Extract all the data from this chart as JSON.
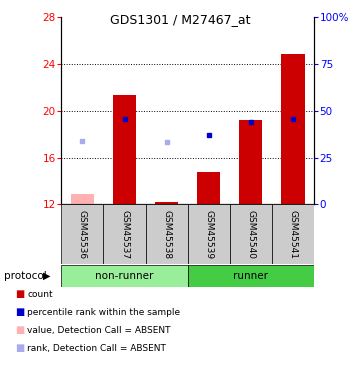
{
  "title": "GDS1301 / M27467_at",
  "samples": [
    "GSM45536",
    "GSM45537",
    "GSM45538",
    "GSM45539",
    "GSM45540",
    "GSM45541"
  ],
  "ylim_left": [
    12,
    28
  ],
  "ylim_right": [
    0,
    100
  ],
  "yticks_left": [
    12,
    16,
    20,
    24,
    28
  ],
  "yticks_right": [
    0,
    25,
    50,
    75,
    100
  ],
  "red_bars": [
    null,
    21.3,
    12.2,
    14.8,
    19.2,
    24.8
  ],
  "blue_dots": [
    null,
    19.3,
    null,
    17.9,
    19.0,
    19.3
  ],
  "pink_bars": [
    12.9,
    null,
    null,
    null,
    null,
    null
  ],
  "light_blue_dots": [
    17.4,
    null,
    17.3,
    null,
    null,
    null
  ],
  "detection_absent": [
    true,
    false,
    true,
    false,
    false,
    false
  ],
  "bar_width": 0.55,
  "red_color": "#cc0000",
  "blue_color": "#0000cc",
  "pink_color": "#ffb0b0",
  "light_blue_color": "#aaaaee",
  "nonrunner_color": "#99ee99",
  "runner_color": "#44cc44",
  "label_bg_color": "#cccccc",
  "protocol_label": "protocol",
  "legend_items": [
    {
      "label": "count",
      "color": "#cc0000"
    },
    {
      "label": "percentile rank within the sample",
      "color": "#0000cc"
    },
    {
      "label": "value, Detection Call = ABSENT",
      "color": "#ffb0b0"
    },
    {
      "label": "rank, Detection Call = ABSENT",
      "color": "#aaaaee"
    }
  ]
}
